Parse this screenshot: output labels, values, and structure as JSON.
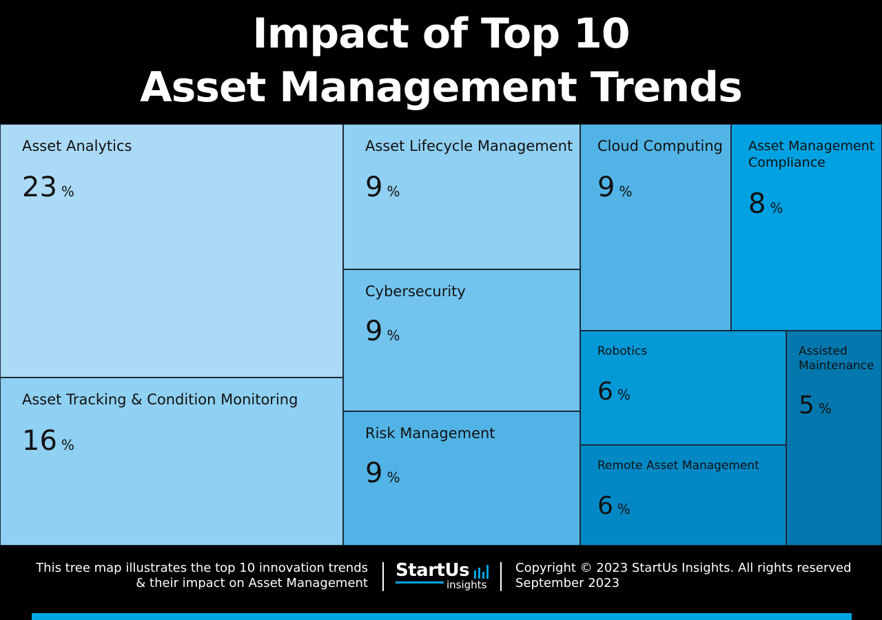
{
  "title": {
    "line1": "Impact of Top 10",
    "line2": "Asset Management Trends"
  },
  "chart_data": {
    "type": "treemap",
    "title": "Impact of Top 10 Asset Management Trends",
    "unit": "%",
    "items": [
      {
        "label": "Asset Analytics",
        "value": 23,
        "color": "#abdaf6"
      },
      {
        "label": "Asset Tracking & Condition Monitoring",
        "value": 16,
        "color": "#90d0f2"
      },
      {
        "label": "Asset Lifecycle Management",
        "value": 9,
        "color": "#90d0f2"
      },
      {
        "label": "Cybersecurity",
        "value": 9,
        "color": "#72c4ee"
      },
      {
        "label": "Risk Management",
        "value": 9,
        "color": "#52b4e6"
      },
      {
        "label": "Cloud Computing",
        "value": 9,
        "color": "#52b4e6"
      },
      {
        "label": "Asset Management Compliance",
        "value": 8,
        "color": "#00a1e1"
      },
      {
        "label": "Robotics",
        "value": 6,
        "color": "#0399d7"
      },
      {
        "label": "Remote Asset Management",
        "value": 6,
        "color": "#0288c4"
      },
      {
        "label": "Assisted Maintenance",
        "value": 5,
        "color": "#0278ae"
      }
    ]
  },
  "footer": {
    "description_line1": "This tree map illustrates the top 10 innovation trends",
    "description_line2": "& their impact on Asset Management",
    "logo_main": "StartUs",
    "logo_sub": "insights",
    "copyright": "Copyright © 2023 StartUs Insights. All rights reserved",
    "date": "September 2023",
    "accent_color": "#00a7e1"
  }
}
